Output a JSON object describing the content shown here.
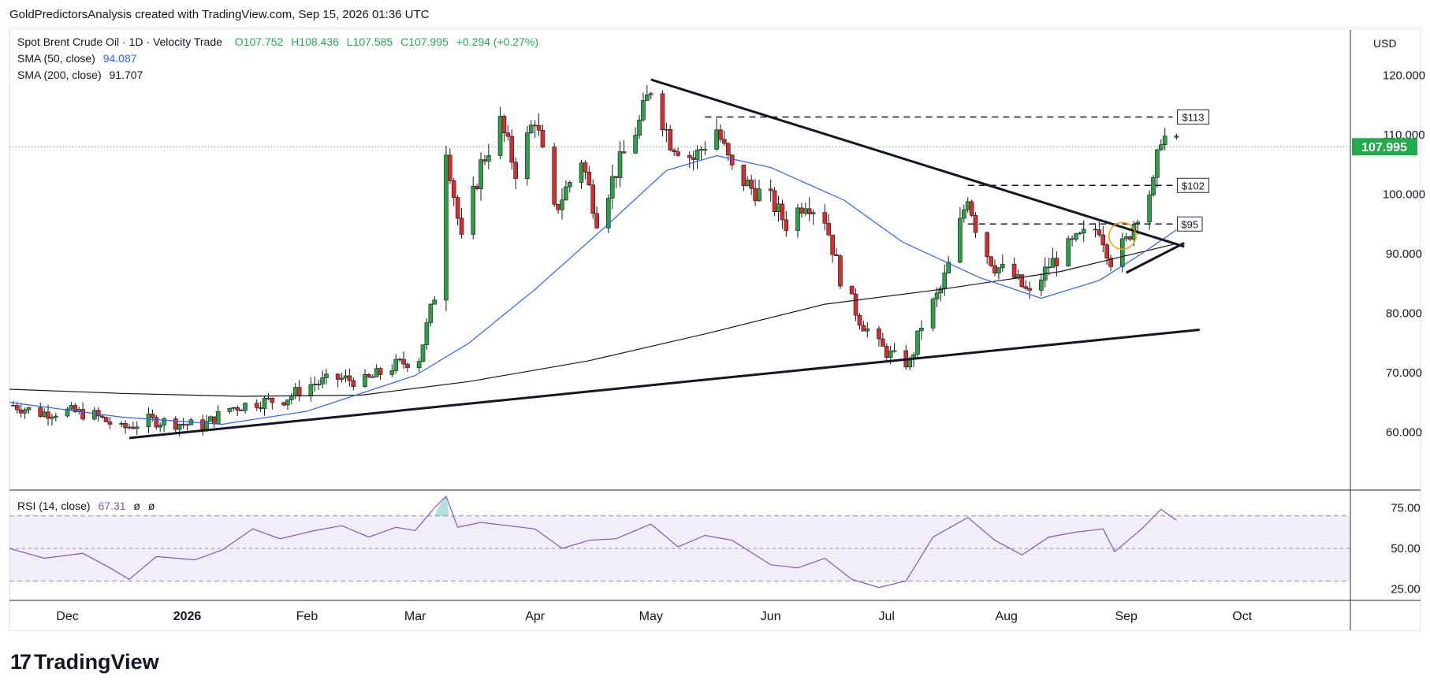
{
  "header": {
    "text": "GoldPredictorsAnalysis created with TradingView.com, Sep 15, 2026 01:36 UTC"
  },
  "legend": {
    "symbol": "Spot Brent Crude Oil · 1D · Velocity Trade",
    "open": "O107.752",
    "high": "H108.436",
    "low": "L107.585",
    "close": "C107.995",
    "change": "+0.294 (+0.27%)",
    "sma50_label": "SMA (50, close)",
    "sma50_value": "94.087",
    "sma200_label": "SMA (200, close)",
    "sma200_value": "91.707",
    "rsi_label": "RSI (14, close)",
    "rsi_value": "67.31",
    "rsi_extra1": "ø",
    "rsi_extra2": "ø"
  },
  "currency": "USD",
  "logo": {
    "text": "TradingView",
    "mark": "17"
  },
  "colors": {
    "up": "#26a69a",
    "down": "#ef5350",
    "up_fill": "#2ea043",
    "down_fill": "#d32f2f",
    "sma50": "#2962ff",
    "sma200": "#131722",
    "rsi": "#7e57c2",
    "last_price": "#22ab4b"
  },
  "chart_data": [
    {
      "type": "candlestick",
      "title": "Spot Brent Crude Oil · 1D · Velocity Trade",
      "ylim": [
        55,
        125
      ],
      "y_ticks": [
        "120.000",
        "110.000",
        "100.000",
        "90.000",
        "80.000",
        "70.000",
        "60.000"
      ],
      "y_tick_values": [
        120,
        110,
        100,
        90,
        80,
        70,
        60
      ],
      "x_ticks": [
        "Dec",
        "2026",
        "Feb",
        "Mar",
        "Apr",
        "May",
        "Jun",
        "Jul",
        "Aug",
        "Sep",
        "Oct"
      ],
      "x_tick_dates": [
        "2025-12-01",
        "2026-01-01",
        "2026-02-01",
        "2026-03-01",
        "2026-04-01",
        "2026-05-01",
        "2026-06-01",
        "2026-07-01",
        "2026-08-01",
        "2026-09-01",
        "2026-10-01"
      ],
      "x_range": [
        "2025-11-16",
        "2026-10-29"
      ],
      "last_price": "107.995",
      "last_price_value": 108.0,
      "close_path": [
        [
          "2025-11-17",
          64.5
        ],
        [
          "2025-11-24",
          63.2
        ],
        [
          "2025-12-01",
          63.5
        ],
        [
          "2025-12-08",
          62.8
        ],
        [
          "2025-12-15",
          60.5
        ],
        [
          "2025-12-22",
          62.0
        ],
        [
          "2025-12-29",
          61.5
        ],
        [
          "2026-01-05",
          61.0
        ],
        [
          "2026-01-12",
          64.0
        ],
        [
          "2026-01-19",
          65.0
        ],
        [
          "2026-01-26",
          65.5
        ],
        [
          "2026-02-02",
          68.0
        ],
        [
          "2026-02-09",
          69.0
        ],
        [
          "2026-02-16",
          68.5
        ],
        [
          "2026-02-23",
          71.0
        ],
        [
          "2026-03-02",
          72.5
        ],
        [
          "2026-03-06",
          83.0
        ],
        [
          "2026-03-09",
          108.0
        ],
        [
          "2026-03-13",
          92.0
        ],
        [
          "2026-03-18",
          105.0
        ],
        [
          "2026-03-23",
          112.0
        ],
        [
          "2026-03-27",
          104.0
        ],
        [
          "2026-04-01",
          113.0
        ],
        [
          "2026-04-06",
          97.0
        ],
        [
          "2026-04-13",
          106.0
        ],
        [
          "2026-04-17",
          96.0
        ],
        [
          "2026-04-22",
          104.0
        ],
        [
          "2026-04-28",
          112.0
        ],
        [
          "2026-05-01",
          118.0
        ],
        [
          "2026-05-06",
          109.0
        ],
        [
          "2026-05-12",
          106.0
        ],
        [
          "2026-05-18",
          111.0
        ],
        [
          "2026-05-22",
          104.0
        ],
        [
          "2026-05-27",
          101.0
        ],
        [
          "2026-06-01",
          99.0
        ],
        [
          "2026-06-05",
          95.0
        ],
        [
          "2026-06-10",
          99.0
        ],
        [
          "2026-06-15",
          96.0
        ],
        [
          "2026-06-19",
          86.0
        ],
        [
          "2026-06-24",
          79.0
        ],
        [
          "2026-06-29",
          74.5
        ],
        [
          "2026-07-03",
          72.5
        ],
        [
          "2026-07-07",
          71.5
        ],
        [
          "2026-07-10",
          78.0
        ],
        [
          "2026-07-15",
          84.0
        ],
        [
          "2026-07-18",
          90.0
        ],
        [
          "2026-07-22",
          100.0
        ],
        [
          "2026-07-25",
          92.0
        ],
        [
          "2026-07-29",
          88.0
        ],
        [
          "2026-08-03",
          86.0
        ],
        [
          "2026-08-07",
          83.0
        ],
        [
          "2026-08-12",
          88.0
        ],
        [
          "2026-08-17",
          91.0
        ],
        [
          "2026-08-21",
          93.0
        ],
        [
          "2026-08-25",
          94.5
        ],
        [
          "2026-08-28",
          89.0
        ],
        [
          "2026-09-01",
          92.0
        ],
        [
          "2026-09-04",
          97.0
        ],
        [
          "2026-09-08",
          101.5
        ],
        [
          "2026-09-10",
          110.0
        ],
        [
          "2026-09-14",
          108.0
        ]
      ],
      "sma50": [
        [
          "2025-11-16",
          65.0
        ],
        [
          "2025-12-15",
          62.5
        ],
        [
          "2026-01-10",
          61.3
        ],
        [
          "2026-02-01",
          63.5
        ],
        [
          "2026-03-01",
          69.5
        ],
        [
          "2026-03-15",
          75.0
        ],
        [
          "2026-04-01",
          84.0
        ],
        [
          "2026-04-20",
          95.0
        ],
        [
          "2026-05-05",
          104.0
        ],
        [
          "2026-05-18",
          106.5
        ],
        [
          "2026-06-01",
          104.5
        ],
        [
          "2026-06-20",
          99.0
        ],
        [
          "2026-07-05",
          92.0
        ],
        [
          "2026-07-25",
          86.0
        ],
        [
          "2026-08-10",
          82.5
        ],
        [
          "2026-08-25",
          85.5
        ],
        [
          "2026-09-05",
          90.0
        ],
        [
          "2026-09-14",
          94.0
        ]
      ],
      "sma200": [
        [
          "2025-11-16",
          67.2
        ],
        [
          "2025-12-15",
          66.5
        ],
        [
          "2026-01-15",
          66.0
        ],
        [
          "2026-02-15",
          66.2
        ],
        [
          "2026-03-15",
          68.5
        ],
        [
          "2026-04-15",
          72.0
        ],
        [
          "2026-05-15",
          76.5
        ],
        [
          "2026-06-15",
          81.5
        ],
        [
          "2026-07-15",
          84.0
        ],
        [
          "2026-08-15",
          87.0
        ],
        [
          "2026-09-14",
          91.7
        ]
      ],
      "trendlines": [
        {
          "from": [
            "2025-12-17",
            59.0
          ],
          "to": [
            "2026-09-20",
            77.2
          ]
        },
        {
          "from": [
            "2026-05-01",
            119.3
          ],
          "to": [
            "2026-09-16",
            91.2
          ]
        },
        {
          "from": [
            "2026-09-01",
            86.8
          ],
          "to": [
            "2026-09-16",
            91.8
          ]
        }
      ],
      "levels": [
        {
          "label": "$113",
          "value": 113,
          "from": "2026-05-15",
          "to": "2026-09-13"
        },
        {
          "label": "$102",
          "value": 101.5,
          "from": "2026-07-22",
          "to": "2026-09-13"
        },
        {
          "label": "$95",
          "value": 95,
          "from": "2026-07-22",
          "to": "2026-09-13"
        }
      ],
      "highlight_circle": {
        "date": "2026-08-31",
        "value": 93
      }
    },
    {
      "type": "line",
      "title": "RSI (14, close)",
      "ylim": [
        20,
        82
      ],
      "y_ticks": [
        "75.00",
        "50.00",
        "25.00"
      ],
      "y_tick_values": [
        75,
        50,
        25
      ],
      "bands": [
        70,
        50,
        30
      ],
      "values": [
        [
          "2025-11-16",
          50
        ],
        [
          "2025-11-25",
          44
        ],
        [
          "2025-12-05",
          47
        ],
        [
          "2025-12-12",
          38
        ],
        [
          "2025-12-17",
          31
        ],
        [
          "2025-12-24",
          45
        ],
        [
          "2026-01-03",
          43
        ],
        [
          "2026-01-10",
          49
        ],
        [
          "2026-01-18",
          62
        ],
        [
          "2026-01-25",
          56
        ],
        [
          "2026-02-03",
          61
        ],
        [
          "2026-02-10",
          64
        ],
        [
          "2026-02-17",
          57
        ],
        [
          "2026-02-24",
          63
        ],
        [
          "2026-03-01",
          61
        ],
        [
          "2026-03-06",
          75
        ],
        [
          "2026-03-09",
          82
        ],
        [
          "2026-03-12",
          63
        ],
        [
          "2026-03-18",
          66
        ],
        [
          "2026-03-25",
          64
        ],
        [
          "2026-04-01",
          62
        ],
        [
          "2026-04-08",
          50
        ],
        [
          "2026-04-15",
          55
        ],
        [
          "2026-04-22",
          56
        ],
        [
          "2026-05-01",
          65
        ],
        [
          "2026-05-08",
          51
        ],
        [
          "2026-05-15",
          58
        ],
        [
          "2026-05-22",
          55
        ],
        [
          "2026-06-01",
          40
        ],
        [
          "2026-06-08",
          38
        ],
        [
          "2026-06-15",
          44
        ],
        [
          "2026-06-22",
          31
        ],
        [
          "2026-06-29",
          26
        ],
        [
          "2026-07-06",
          30
        ],
        [
          "2026-07-13",
          57
        ],
        [
          "2026-07-22",
          69
        ],
        [
          "2026-07-29",
          55
        ],
        [
          "2026-08-05",
          46
        ],
        [
          "2026-08-12",
          57
        ],
        [
          "2026-08-19",
          60
        ],
        [
          "2026-08-26",
          62
        ],
        [
          "2026-08-29",
          48
        ],
        [
          "2026-09-05",
          62
        ],
        [
          "2026-09-10",
          74
        ],
        [
          "2026-09-14",
          67.3
        ]
      ]
    }
  ]
}
